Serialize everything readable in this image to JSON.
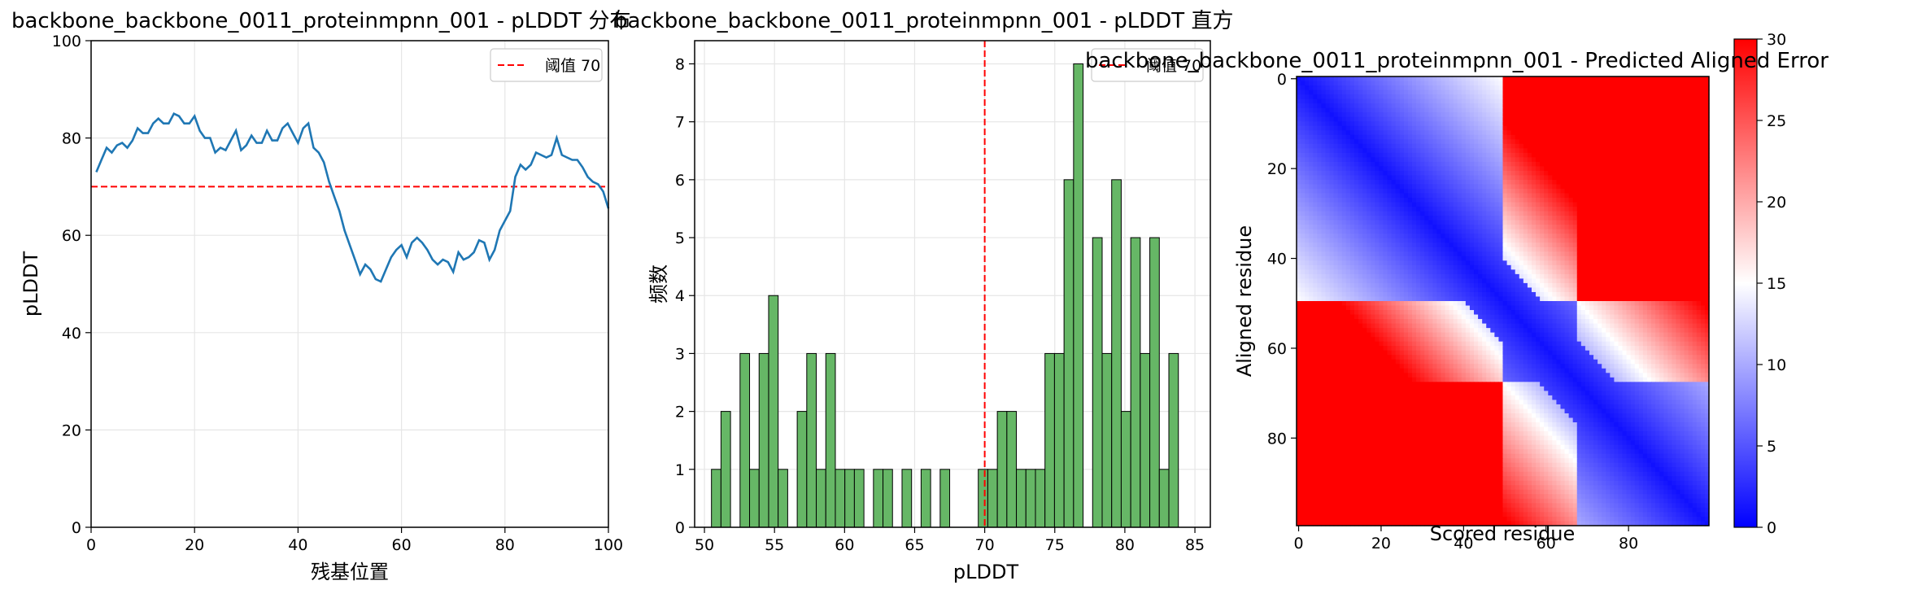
{
  "chart_data": [
    {
      "type": "line",
      "title": "backbone_backbone_0011_proteinmpnn_001 - pLDDT 分布",
      "xlabel": "残基位置",
      "ylabel": "pLDDT",
      "xlim": [
        0,
        100
      ],
      "ylim": [
        0,
        100
      ],
      "xticks": [
        "0",
        "20",
        "40",
        "60",
        "80",
        "100"
      ],
      "yticks": [
        "0",
        "20",
        "40",
        "60",
        "80",
        "100"
      ],
      "grid": true,
      "legend_position": "top-right",
      "line_color": "#1f77b4",
      "threshold": {
        "value": 70,
        "label": "阈值 70",
        "color": "#ff0000"
      },
      "x": [
        1,
        2,
        3,
        4,
        5,
        6,
        7,
        8,
        9,
        10,
        11,
        12,
        13,
        14,
        15,
        16,
        17,
        18,
        19,
        20,
        21,
        22,
        23,
        24,
        25,
        26,
        27,
        28,
        29,
        30,
        31,
        32,
        33,
        34,
        35,
        36,
        37,
        38,
        39,
        40,
        41,
        42,
        43,
        44,
        45,
        46,
        47,
        48,
        49,
        50,
        51,
        52,
        53,
        54,
        55,
        56,
        57,
        58,
        59,
        60,
        61,
        62,
        63,
        64,
        65,
        66,
        67,
        68,
        69,
        70,
        71,
        72,
        73,
        74,
        75,
        76,
        77,
        78,
        79,
        80,
        81,
        82,
        83,
        84,
        85,
        86,
        87,
        88,
        89,
        90,
        91,
        92,
        93,
        94,
        95,
        96,
        97,
        98,
        99,
        100
      ],
      "y": [
        73,
        75.5,
        78,
        77,
        78.5,
        79,
        78,
        79.5,
        82,
        81,
        81,
        83,
        84,
        83,
        83,
        85,
        84.5,
        83,
        83,
        84.5,
        81.5,
        80,
        80,
        77,
        78,
        77.5,
        79.5,
        81.5,
        77.5,
        78.5,
        80.5,
        79,
        79,
        81.5,
        79.5,
        79.5,
        82,
        83,
        81,
        79,
        82,
        83,
        78,
        77,
        75,
        71,
        68,
        65,
        61,
        58,
        55,
        52,
        54,
        53,
        51,
        50.5,
        53,
        55.5,
        57,
        58,
        55.5,
        58.5,
        59.5,
        58.5,
        57,
        55,
        54,
        55,
        54.5,
        52.5,
        56.5,
        55,
        55.5,
        56.5,
        59,
        58.5,
        55,
        57,
        61,
        63,
        65,
        72,
        74.5,
        73.5,
        74.5,
        77,
        76.5,
        76,
        76.5,
        80,
        76.5,
        76,
        75.5,
        75.5,
        74,
        72,
        71,
        70.5,
        69,
        65.5
      ]
    },
    {
      "type": "bar",
      "title": "backbone_backbone_0011_proteinmpnn_001 - pLDDT 直方",
      "xlabel": "pLDDT",
      "ylabel": "频数",
      "xlim": [
        49.3,
        86.1
      ],
      "ylim": [
        0,
        8.4
      ],
      "xticks": [
        "50",
        "55",
        "60",
        "65",
        "70",
        "75",
        "80",
        "85"
      ],
      "yticks": [
        "0",
        "1",
        "2",
        "3",
        "4",
        "5",
        "6",
        "7",
        "8"
      ],
      "grid": true,
      "legend_position": "top-right",
      "bar_color": "#66b766",
      "threshold": {
        "value": 70,
        "label": "阈值 70",
        "color": "#ff0000"
      },
      "bin_width": 0.68,
      "bin_starts": [
        50.5,
        51.18,
        51.86,
        52.54,
        53.22,
        53.9,
        54.58,
        55.26,
        55.94,
        56.62,
        57.3,
        57.98,
        58.66,
        59.34,
        60.02,
        60.7,
        61.38,
        62.06,
        62.74,
        63.42,
        64.1,
        64.78,
        65.46,
        66.14,
        66.82,
        67.5,
        68.18,
        68.86,
        69.54,
        70.22,
        70.9,
        71.58,
        72.26,
        72.94,
        73.62,
        74.3,
        74.98,
        75.66,
        76.34,
        77.02,
        77.7,
        78.38,
        79.06,
        79.74,
        80.42,
        81.1,
        81.78,
        82.46,
        83.14,
        83.82
      ],
      "values": [
        1,
        2,
        0,
        3,
        1,
        3,
        4,
        1,
        0,
        2,
        3,
        1,
        3,
        1,
        1,
        1,
        0,
        1,
        1,
        0,
        1,
        0,
        1,
        0,
        1,
        0,
        0,
        0,
        1,
        1,
        2,
        2,
        1,
        1,
        1,
        3,
        3,
        6,
        8,
        0,
        5,
        3,
        6,
        2,
        5,
        3,
        5,
        1,
        3,
        0
      ]
    },
    {
      "type": "heatmap",
      "title": "backbone_backbone_0011_proteinmpnn_001 - Predicted Aligned Error",
      "xlabel": "Scored residue",
      "ylabel": "Aligned residue",
      "xticks": [
        "0",
        "20",
        "40",
        "60",
        "80"
      ],
      "yticks": [
        "0",
        "20",
        "40",
        "60",
        "80"
      ],
      "n_residues": 100,
      "colormap": "bwr",
      "colormap_colors": [
        "#0000ff",
        "#ffffff",
        "#ff0000"
      ],
      "vmin": 0,
      "vmax": 30,
      "colorbar_ticks": [
        "0",
        "5",
        "10",
        "15",
        "20",
        "25",
        "30"
      ],
      "domain_boundaries": [
        50,
        68
      ]
    }
  ]
}
